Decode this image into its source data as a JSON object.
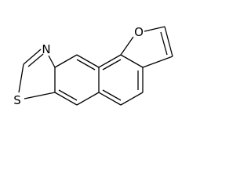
{
  "atoms": [
    {
      "label": "N"
    },
    {
      "label": "O"
    },
    {
      "label": "S"
    }
  ]
}
